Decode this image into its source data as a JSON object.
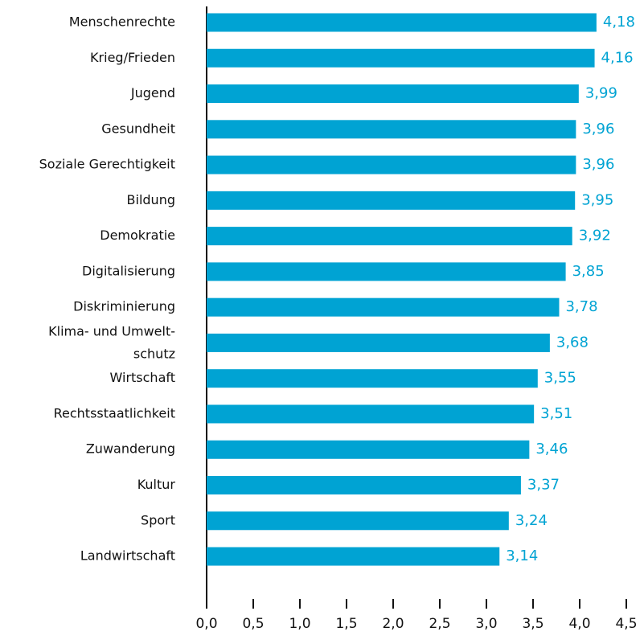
{
  "chart_data": {
    "type": "bar",
    "orientation": "horizontal",
    "categories": [
      "Menschenrechte",
      "Krieg/Frieden",
      "Jugend",
      "Gesundheit",
      "Soziale Gerechtigkeit",
      "Bildung",
      "Demokratie",
      "Digitalisierung",
      "Diskriminierung",
      "Klima- und Umwelt-\nschutz",
      "Wirtschaft",
      "Rechtsstaatlichkeit",
      "Zuwanderung",
      "Kultur",
      "Sport",
      "Landwirtschaft"
    ],
    "values": [
      4.18,
      4.16,
      3.99,
      3.96,
      3.96,
      3.95,
      3.92,
      3.85,
      3.78,
      3.68,
      3.55,
      3.51,
      3.46,
      3.37,
      3.24,
      3.14
    ],
    "value_labels": [
      "4,18",
      "4,16",
      "3,99",
      "3,96",
      "3,96",
      "3,95",
      "3,92",
      "3,85",
      "3,78",
      "3,68",
      "3,55",
      "3,51",
      "3,46",
      "3,37",
      "3,24",
      "3,14"
    ],
    "color": "#00a3d3",
    "xlim": [
      0,
      4.5
    ],
    "xticks": [
      {
        "value": 0,
        "label": "0,0"
      },
      {
        "value": 0.5,
        "label": "0,5"
      },
      {
        "value": 1,
        "label": "1,0"
      },
      {
        "value": 1.5,
        "label": "1,5"
      },
      {
        "value": 2,
        "label": "2,0"
      },
      {
        "value": 2.5,
        "label": "2,5"
      },
      {
        "value": 3,
        "label": "3,0"
      },
      {
        "value": 3.5,
        "label": "3,5"
      },
      {
        "value": 4,
        "label": "4,0"
      },
      {
        "value": 4.5,
        "label": "4,5"
      }
    ],
    "grid": false
  }
}
